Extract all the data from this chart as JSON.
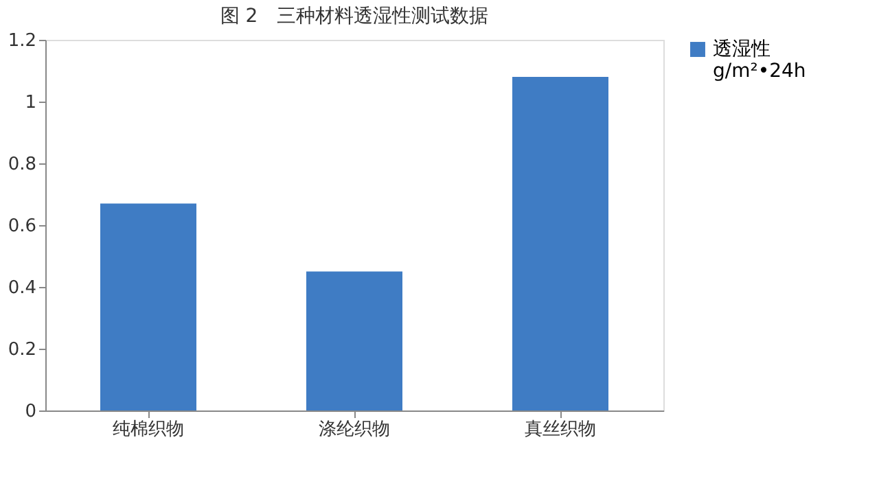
{
  "chart_data": {
    "type": "bar",
    "title": "图 2　三种材料透湿性测试数据",
    "categories": [
      "纯棉织物",
      "涤纶织物",
      "真丝织物"
    ],
    "series": [
      {
        "name": "透湿性 g/m²•24h",
        "color": "#3f7cc4",
        "values": [
          0.67,
          0.45,
          1.08
        ]
      }
    ],
    "ylim": [
      0,
      1.2
    ],
    "yticks": [
      0,
      0.2,
      0.4,
      0.6,
      0.8,
      1,
      1.2
    ],
    "grid": false,
    "legend": "right"
  }
}
